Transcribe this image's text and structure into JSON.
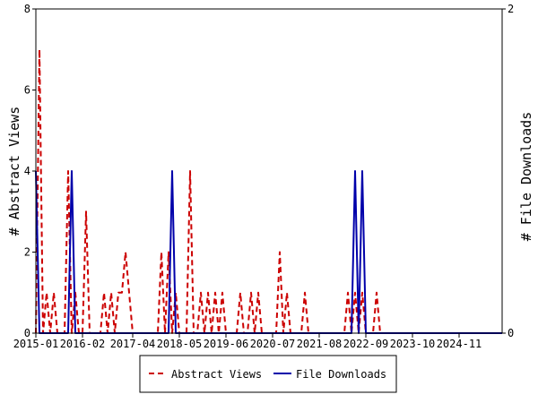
{
  "chart_data": {
    "type": "line",
    "ylabel": "# Abstract Views",
    "y2label": "# File Downloads",
    "ylim": [
      0,
      8
    ],
    "y2lim": [
      0,
      2
    ],
    "yticks": [
      "0",
      "2",
      "4",
      "6",
      "8"
    ],
    "y2ticks": [
      "0",
      "2"
    ],
    "xlim": [
      "2015-01",
      "2025-11"
    ],
    "xtick_labels": [
      "2015-01",
      "2016-02",
      "2017-04",
      "2018-05",
      "2019-06",
      "2020-07",
      "2021-08",
      "2022-09",
      "2023-10",
      "2024-11"
    ],
    "grid": false,
    "legend_position": "bottom",
    "series": [
      {
        "name": "Abstract Views",
        "axis": "left",
        "color": "#cc0000",
        "style": "dashed",
        "x": [
          "2015-01",
          "2015-02",
          "2015-03",
          "2015-04",
          "2015-05",
          "2015-06",
          "2015-07",
          "2015-08",
          "2015-09",
          "2015-10",
          "2015-11",
          "2015-12",
          "2016-01",
          "2016-02",
          "2016-03",
          "2016-04",
          "2016-05",
          "2016-06",
          "2016-07",
          "2016-08",
          "2016-09",
          "2016-10",
          "2016-11",
          "2016-12",
          "2017-01",
          "2017-02",
          "2017-03",
          "2017-04",
          "2017-05",
          "2017-06",
          "2017-07",
          "2017-08",
          "2017-09",
          "2017-10",
          "2017-11",
          "2017-12",
          "2018-01",
          "2018-02",
          "2018-03",
          "2018-04",
          "2018-05",
          "2018-06",
          "2018-07",
          "2018-08",
          "2018-09",
          "2018-10",
          "2018-11",
          "2018-12",
          "2019-01",
          "2019-02",
          "2019-03",
          "2019-04",
          "2019-05",
          "2019-06",
          "2019-07",
          "2019-08",
          "2019-09",
          "2019-10",
          "2019-11",
          "2019-12",
          "2020-01",
          "2020-02",
          "2020-03",
          "2020-04",
          "2020-05",
          "2020-06",
          "2020-07",
          "2020-08",
          "2020-09",
          "2020-10",
          "2020-11",
          "2020-12",
          "2021-01",
          "2021-02",
          "2021-03",
          "2021-04",
          "2021-05",
          "2021-06",
          "2021-07",
          "2021-08",
          "2021-09",
          "2021-10",
          "2021-11",
          "2021-12",
          "2022-01",
          "2022-02",
          "2022-03",
          "2022-04",
          "2022-05",
          "2022-06",
          "2022-07",
          "2022-08",
          "2022-09",
          "2022-10",
          "2022-11",
          "2022-12",
          "2023-01",
          "2023-02",
          "2023-03",
          "2023-04",
          "2023-05",
          "2023-06",
          "2023-07",
          "2023-08",
          "2023-09",
          "2023-10",
          "2023-11",
          "2023-12",
          "2024-01",
          "2024-02",
          "2024-03",
          "2024-04",
          "2024-05",
          "2024-06",
          "2024-07",
          "2024-08",
          "2024-09",
          "2024-10",
          "2024-11",
          "2024-12",
          "2025-01",
          "2025-02",
          "2025-03",
          "2025-04",
          "2025-05",
          "2025-06",
          "2025-07",
          "2025-08",
          "2025-09",
          "2025-10",
          "2025-11"
        ],
        "values": [
          0,
          7,
          0,
          1,
          0,
          1,
          0,
          0,
          0,
          4,
          0,
          1,
          0,
          0,
          3,
          0,
          0,
          0,
          0,
          1,
          0,
          1,
          0,
          1,
          1,
          2,
          1,
          0,
          0,
          0,
          0,
          0,
          0,
          0,
          0,
          2,
          0,
          2,
          0,
          1,
          0,
          0,
          0,
          4,
          0,
          0,
          1,
          0,
          1,
          0,
          1,
          0,
          1,
          0,
          0,
          0,
          0,
          1,
          0,
          0,
          1,
          0,
          1,
          0,
          0,
          0,
          0,
          0,
          2,
          0,
          1,
          0,
          0,
          0,
          0,
          1,
          0,
          0,
          0,
          0,
          0,
          0,
          0,
          0,
          0,
          0,
          0,
          1,
          0,
          1,
          0,
          1,
          0,
          0,
          0,
          1,
          0,
          0,
          0,
          0,
          0,
          0,
          0,
          0,
          0,
          0,
          0,
          0,
          0,
          0,
          0,
          0,
          0,
          0,
          0,
          0,
          0,
          0,
          0,
          0,
          0,
          0,
          0,
          0,
          0,
          0,
          0,
          0,
          0,
          0,
          0
        ]
      },
      {
        "name": "File Downloads",
        "axis": "right",
        "color": "#0000aa",
        "style": "solid",
        "x": [
          "2015-01",
          "2015-02",
          "2015-03",
          "2015-04",
          "2015-05",
          "2015-06",
          "2015-07",
          "2015-08",
          "2015-09",
          "2015-10",
          "2015-11",
          "2015-12",
          "2016-01",
          "2016-02",
          "2016-03",
          "2016-04",
          "2016-05",
          "2016-06",
          "2016-07",
          "2016-08",
          "2016-09",
          "2016-10",
          "2016-11",
          "2016-12",
          "2017-01",
          "2017-02",
          "2017-03",
          "2017-04",
          "2017-05",
          "2017-06",
          "2017-07",
          "2017-08",
          "2017-09",
          "2017-10",
          "2017-11",
          "2017-12",
          "2018-01",
          "2018-02",
          "2018-03",
          "2018-04",
          "2018-05",
          "2018-06",
          "2018-07",
          "2018-08",
          "2018-09",
          "2018-10",
          "2018-11",
          "2018-12",
          "2019-01",
          "2019-02",
          "2019-03",
          "2019-04",
          "2019-05",
          "2019-06",
          "2019-07",
          "2019-08",
          "2019-09",
          "2019-10",
          "2019-11",
          "2019-12",
          "2020-01",
          "2020-02",
          "2020-03",
          "2020-04",
          "2020-05",
          "2020-06",
          "2020-07",
          "2020-08",
          "2020-09",
          "2020-10",
          "2020-11",
          "2020-12",
          "2021-01",
          "2021-02",
          "2021-03",
          "2021-04",
          "2021-05",
          "2021-06",
          "2021-07",
          "2021-08",
          "2021-09",
          "2021-10",
          "2021-11",
          "2021-12",
          "2022-01",
          "2022-02",
          "2022-03",
          "2022-04",
          "2022-05",
          "2022-06",
          "2022-07",
          "2022-08",
          "2022-09",
          "2022-10",
          "2022-11",
          "2022-12",
          "2023-01",
          "2023-02",
          "2023-03",
          "2023-04",
          "2023-05",
          "2023-06",
          "2023-07",
          "2023-08",
          "2023-09",
          "2023-10",
          "2023-11",
          "2023-12",
          "2024-01",
          "2024-02",
          "2024-03",
          "2024-04",
          "2024-05",
          "2024-06",
          "2024-07",
          "2024-08",
          "2024-09",
          "2024-10",
          "2024-11",
          "2024-12",
          "2025-01",
          "2025-02",
          "2025-03",
          "2025-04",
          "2025-05",
          "2025-06",
          "2025-07",
          "2025-08",
          "2025-09",
          "2025-10",
          "2025-11"
        ],
        "values": [
          1,
          0,
          0,
          0,
          0,
          0,
          0,
          0,
          0,
          0,
          1,
          0,
          0,
          0,
          0,
          0,
          0,
          0,
          0,
          0,
          0,
          0,
          0,
          0,
          0,
          0,
          0,
          0,
          0,
          0,
          0,
          0,
          0,
          0,
          0,
          0,
          0,
          0,
          1,
          0,
          0,
          0,
          0,
          0,
          0,
          0,
          0,
          0,
          0,
          0,
          0,
          0,
          0,
          0,
          0,
          0,
          0,
          0,
          0,
          0,
          0,
          0,
          0,
          0,
          0,
          0,
          0,
          0,
          0,
          0,
          0,
          0,
          0,
          0,
          0,
          0,
          0,
          0,
          0,
          0,
          0,
          0,
          0,
          0,
          0,
          0,
          0,
          0,
          0,
          1,
          0,
          1,
          0,
          0,
          0,
          0,
          0,
          0,
          0,
          0,
          0,
          0,
          0,
          0,
          0,
          0,
          0,
          0,
          0,
          0,
          0,
          0,
          0,
          0,
          0,
          0,
          0,
          0,
          0,
          0,
          0,
          0,
          0,
          0,
          0,
          0,
          0,
          0,
          0,
          0,
          0
        ]
      }
    ]
  }
}
